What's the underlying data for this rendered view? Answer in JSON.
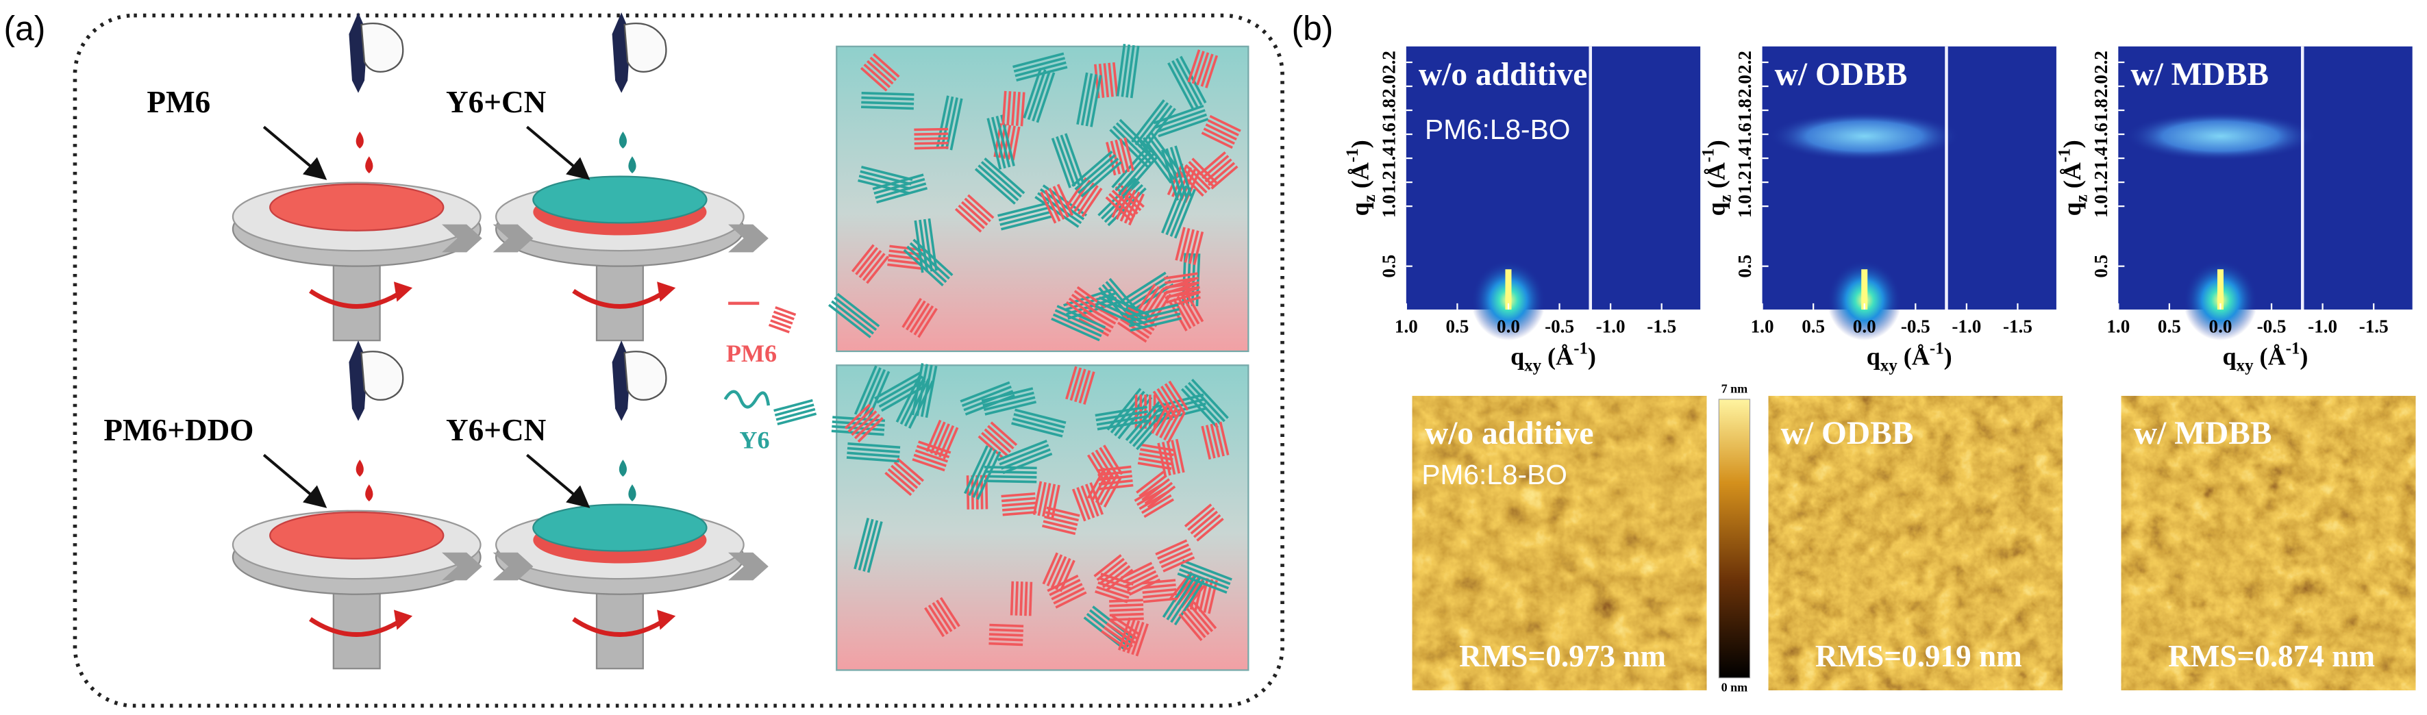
{
  "panel_a": {
    "label": "(a)",
    "rows": [
      {
        "first": "PM6",
        "second": "Y6+CN"
      },
      {
        "first": "PM6+DDO",
        "second": "Y6+CN"
      }
    ],
    "legend": [
      "PM6",
      "Y6"
    ]
  },
  "panel_b": {
    "label": "(b)",
    "giwaxs": {
      "panels": [
        {
          "title": "w/o additive",
          "note": "PM6:L8-BO"
        },
        {
          "title": "w/ ODBB"
        },
        {
          "title": "w/ MDBB"
        }
      ],
      "y_axis": {
        "symbol": "q",
        "sub": "z",
        "unit": " (Å",
        "sup": "-1",
        "close": ")"
      },
      "x_axis": {
        "symbol": "q",
        "sub": "xy",
        "unit": " (Å",
        "sup": "-1",
        "close": ")"
      },
      "yticks": [
        "0.5",
        "1.0",
        "1.2",
        "1.4",
        "1.6",
        "1.8",
        "2.0",
        "2.2"
      ],
      "xticks": [
        "1.0",
        "0.5",
        "0.0",
        "-0.5",
        "-1.0",
        "-1.5"
      ]
    },
    "afm": {
      "panels": [
        {
          "title": "w/o additive",
          "note": "PM6:L8-BO",
          "rms": "RMS=0.973 nm"
        },
        {
          "title": "w/ ODBB",
          "rms": "RMS=0.919 nm"
        },
        {
          "title": "w/ MDBB",
          "rms": "RMS=0.874 nm"
        }
      ],
      "colorbar": {
        "max": "7 nm",
        "min": "0 nm"
      }
    }
  }
}
